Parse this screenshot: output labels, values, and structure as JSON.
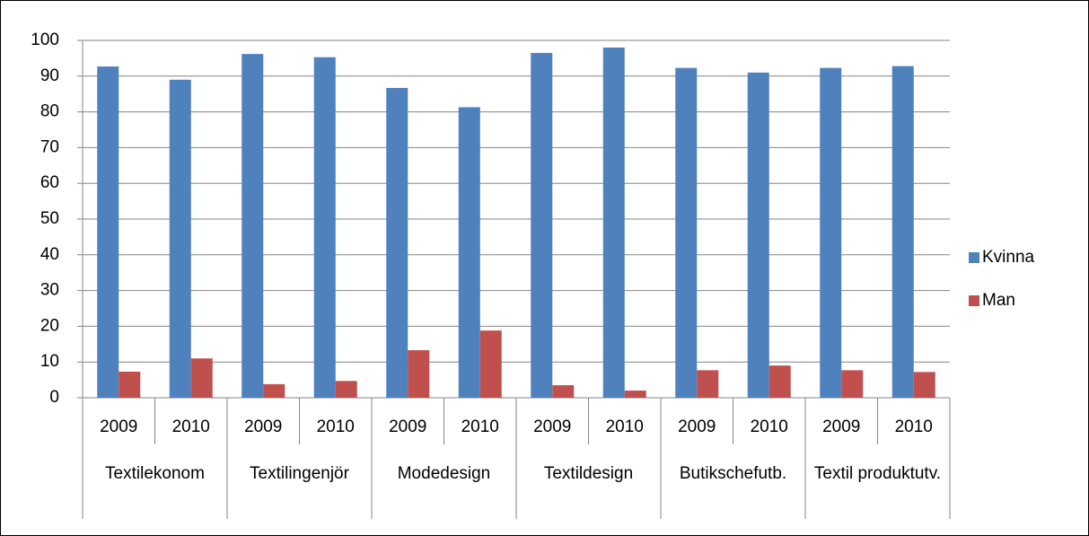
{
  "chart_data": {
    "type": "bar",
    "categories": [
      "2009",
      "2010",
      "2009",
      "2010",
      "2009",
      "2010",
      "2009",
      "2010",
      "2009",
      "2010",
      "2009",
      "2010"
    ],
    "groups": [
      "Textilekonom",
      "Textilingenjör",
      "Modedesign",
      "Textildesign",
      "Butikschefutb.",
      "Textil produktutv."
    ],
    "series": [
      {
        "name": "Kvinna",
        "color": "#4f81bd",
        "values": [
          92.7,
          89,
          96.2,
          95.3,
          86.7,
          81.3,
          96.5,
          98,
          92.3,
          91,
          92.3,
          92.8
        ]
      },
      {
        "name": "Man",
        "color": "#c0504d",
        "values": [
          7.3,
          11,
          3.8,
          4.7,
          13.3,
          18.8,
          3.5,
          2,
          7.7,
          9,
          7.7,
          7.2
        ]
      }
    ],
    "ylim": [
      0,
      100
    ],
    "yticks": [
      0,
      10,
      20,
      30,
      40,
      50,
      60,
      70,
      80,
      90,
      100
    ],
    "grid": true,
    "legend": "right"
  }
}
